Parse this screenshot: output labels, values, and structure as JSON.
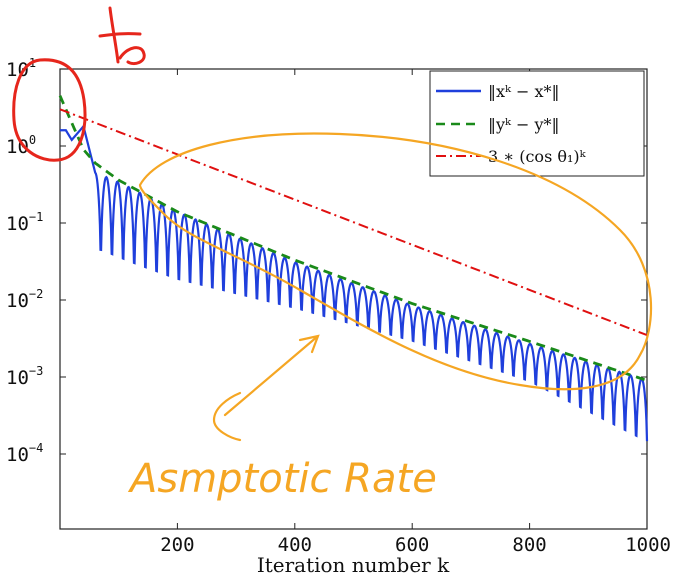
{
  "chart_data": {
    "type": "line",
    "title": "",
    "xlabel": "Iteration number k",
    "ylabel": "",
    "xlim": [
      0,
      1000
    ],
    "ylim_log10": [
      -5,
      1
    ],
    "yscale": "log",
    "grid": false,
    "legend_position": "top-right",
    "x_ticks": [
      200,
      400,
      600,
      800,
      1000
    ],
    "x_tick_labels": [
      "200",
      "400",
      "600",
      "800",
      "1000"
    ],
    "y_ticks": [
      {
        "base": "10",
        "exp": "1",
        "value": 10
      },
      {
        "base": "10",
        "exp": "0",
        "value": 1
      },
      {
        "base": "10",
        "exp": "−1",
        "value": 0.1
      },
      {
        "base": "10",
        "exp": "−2",
        "value": 0.01
      },
      {
        "base": "10",
        "exp": "−3",
        "value": 0.001
      },
      {
        "base": "10",
        "exp": "−4",
        "value": 0.0001
      }
    ],
    "series": [
      {
        "name": "||x^k − x*||",
        "legend_label": "‖xᵏ − x*‖",
        "color": "#1f3fdc",
        "dash": "solid",
        "style": "oscillating",
        "envelope": [
          [
            10,
            1.6
          ],
          [
            20,
            1.2
          ],
          [
            40,
            1.8
          ],
          [
            60,
            0.45
          ],
          [
            100,
            0.34
          ],
          [
            200,
            0.14
          ],
          [
            400,
            0.031
          ],
          [
            600,
            0.0085
          ],
          [
            800,
            0.0027
          ],
          [
            1000,
            0.0009
          ]
        ],
        "troughs": [
          [
            70,
            0.009
          ],
          [
            120,
            0.0065
          ],
          [
            200,
            0.0045
          ],
          [
            400,
            0.003
          ],
          [
            600,
            0.0014
          ],
          [
            800,
            0.0004
          ],
          [
            1000,
            4e-05
          ]
        ],
        "period": 19
      },
      {
        "name": "||y^k − y*||",
        "legend_label": "‖yᵏ − y*‖",
        "color": "#1a8a1a",
        "dash": "dashed",
        "points": [
          [
            0,
            4.5
          ],
          [
            20,
            2.0
          ],
          [
            40,
            0.9
          ],
          [
            60,
            0.6
          ],
          [
            100,
            0.36
          ],
          [
            200,
            0.14
          ],
          [
            400,
            0.033
          ],
          [
            600,
            0.009
          ],
          [
            800,
            0.0029
          ],
          [
            1000,
            0.0009
          ]
        ]
      },
      {
        "name": "3 * (cos θ1)^k",
        "legend_label": "3 ∗ (cos θ₁)ᵏ",
        "color": "#e01010",
        "dash": "dashdot",
        "points": [
          [
            0,
            3.0
          ],
          [
            1000,
            0.0035
          ]
        ]
      }
    ]
  },
  "annotations": {
    "handwritten_label": "Asmptotic Rate",
    "handwritten_top": "to",
    "color": "#f5a623",
    "circle_color": "#e6261c"
  }
}
